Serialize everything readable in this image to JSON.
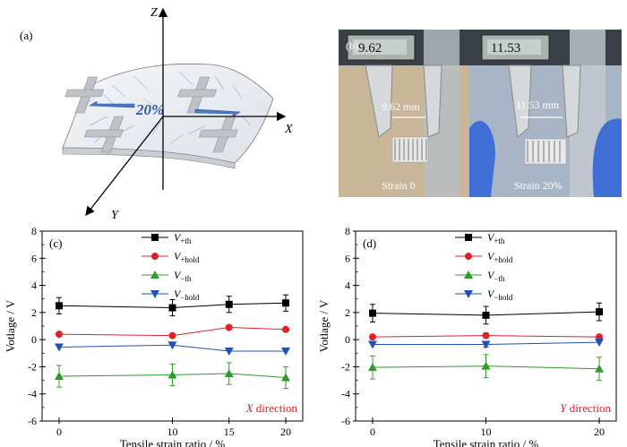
{
  "panels": {
    "a": {
      "label": "(a)",
      "axis_z": "Z",
      "axis_x": "X",
      "axis_y": "Y",
      "strain_text": "20%"
    },
    "b": {
      "label": "(b)",
      "left": {
        "display": "9.62",
        "measure": "9.62 mm",
        "caption": "Strain 0"
      },
      "right": {
        "display": "11.53",
        "measure": "11.53 mm",
        "caption": "Strain 20%"
      },
      "colors": {
        "photo_bg_left": "#c7b495",
        "glove": "#3f6fd6",
        "caliper": "#b8bec4"
      }
    }
  },
  "chart_data": [
    {
      "panel": "(c)",
      "type": "line",
      "xlabel": "Tensile strain ratio / %",
      "ylabel": "Votlage / V",
      "x": [
        0,
        10,
        15,
        20
      ],
      "x_ticks": [
        "0",
        "10",
        "15",
        "20"
      ],
      "xlim": [
        -1.5,
        21.5
      ],
      "ylim": [
        -6,
        8
      ],
      "y_ticks": [
        "-6",
        "-4",
        "-2",
        "0",
        "2",
        "4",
        "6",
        "8"
      ],
      "annotation": "X direction",
      "annotation_color": "#e0202a",
      "series": [
        {
          "name_main": "V",
          "name_sub": "+th",
          "color": "#000000",
          "marker": "square",
          "values": [
            2.5,
            2.35,
            2.6,
            2.7
          ],
          "err": [
            0.6,
            0.6,
            0.6,
            0.6
          ]
        },
        {
          "name_main": "V",
          "name_sub": "+hold",
          "color": "#e0202a",
          "marker": "circle",
          "values": [
            0.4,
            0.3,
            0.9,
            0.75
          ],
          "err": [
            0,
            0,
            0,
            0
          ]
        },
        {
          "name_main": "V",
          "name_sub": "−th",
          "color": "#2e9c2a",
          "marker": "triangle-up",
          "values": [
            -2.7,
            -2.6,
            -2.5,
            -2.8
          ],
          "err": [
            0.8,
            0.8,
            0.8,
            0.8
          ]
        },
        {
          "name_main": "V",
          "name_sub": "−hold",
          "color": "#2050b8",
          "marker": "triangle-down",
          "values": [
            -0.55,
            -0.4,
            -0.85,
            -0.85
          ],
          "err": [
            0,
            0,
            0,
            0
          ]
        }
      ]
    },
    {
      "panel": "(d)",
      "type": "line",
      "xlabel": "Tensile strain ratio / %",
      "ylabel": "Votlage / V",
      "x": [
        0,
        10,
        20
      ],
      "x_ticks": [
        "0",
        "10",
        "20"
      ],
      "xlim": [
        -1.5,
        21.5
      ],
      "ylim": [
        -6,
        8
      ],
      "y_ticks": [
        "-6",
        "-4",
        "-2",
        "0",
        "2",
        "4",
        "6",
        "8"
      ],
      "annotation": "Y direction",
      "annotation_color": "#e0202a",
      "series": [
        {
          "name_main": "V",
          "name_sub": "+th",
          "color": "#000000",
          "marker": "square",
          "values": [
            1.95,
            1.8,
            2.05
          ],
          "err": [
            0.65,
            0.65,
            0.65
          ]
        },
        {
          "name_main": "V",
          "name_sub": "+hold",
          "color": "#e0202a",
          "marker": "circle",
          "values": [
            0.2,
            0.3,
            0.2
          ],
          "err": [
            0,
            0.2,
            0
          ]
        },
        {
          "name_main": "V",
          "name_sub": "−th",
          "color": "#2e9c2a",
          "marker": "triangle-up",
          "values": [
            -2.05,
            -1.95,
            -2.15
          ],
          "err": [
            0.85,
            0.85,
            0.85
          ]
        },
        {
          "name_main": "V",
          "name_sub": "−hold",
          "color": "#2050b8",
          "marker": "triangle-down",
          "values": [
            -0.35,
            -0.35,
            -0.2
          ],
          "err": [
            0,
            0.2,
            0
          ]
        }
      ]
    }
  ]
}
